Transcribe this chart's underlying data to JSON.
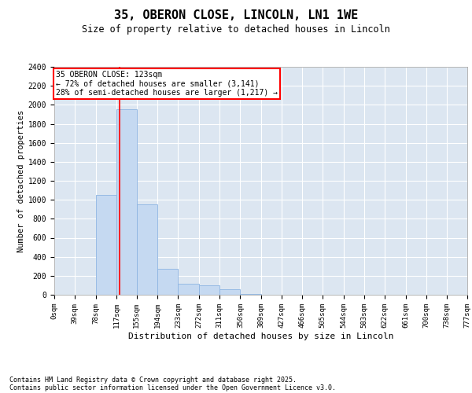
{
  "title": "35, OBERON CLOSE, LINCOLN, LN1 1WE",
  "subtitle": "Size of property relative to detached houses in Lincoln",
  "xlabel": "Distribution of detached houses by size in Lincoln",
  "ylabel": "Number of detached properties",
  "bar_color": "#c5d9f1",
  "bar_edge_color": "#8db4e2",
  "background_color": "#dce6f1",
  "grid_color": "#ffffff",
  "red_line_x": 123,
  "annotation_line1": "35 OBERON CLOSE: 123sqm",
  "annotation_line2": "← 72% of detached houses are smaller (3,141)",
  "annotation_line3": "28% of semi-detached houses are larger (1,217) →",
  "bin_edges": [
    0,
    39,
    78,
    117,
    155,
    194,
    233,
    272,
    311,
    350,
    389,
    427,
    466,
    505,
    544,
    583,
    622,
    661,
    700,
    738,
    777
  ],
  "bin_counts": [
    0,
    0,
    1050,
    1950,
    950,
    270,
    120,
    100,
    60,
    10,
    0,
    0,
    0,
    0,
    0,
    0,
    0,
    0,
    0,
    0
  ],
  "ylim": [
    0,
    2400
  ],
  "yticks": [
    0,
    200,
    400,
    600,
    800,
    1000,
    1200,
    1400,
    1600,
    1800,
    2000,
    2200,
    2400
  ],
  "tick_labels": [
    "0sqm",
    "39sqm",
    "78sqm",
    "117sqm",
    "155sqm",
    "194sqm",
    "233sqm",
    "272sqm",
    "311sqm",
    "350sqm",
    "389sqm",
    "427sqm",
    "466sqm",
    "505sqm",
    "544sqm",
    "583sqm",
    "622sqm",
    "661sqm",
    "700sqm",
    "738sqm",
    "777sqm"
  ],
  "footnote1": "Contains HM Land Registry data © Crown copyright and database right 2025.",
  "footnote2": "Contains public sector information licensed under the Open Government Licence v3.0."
}
